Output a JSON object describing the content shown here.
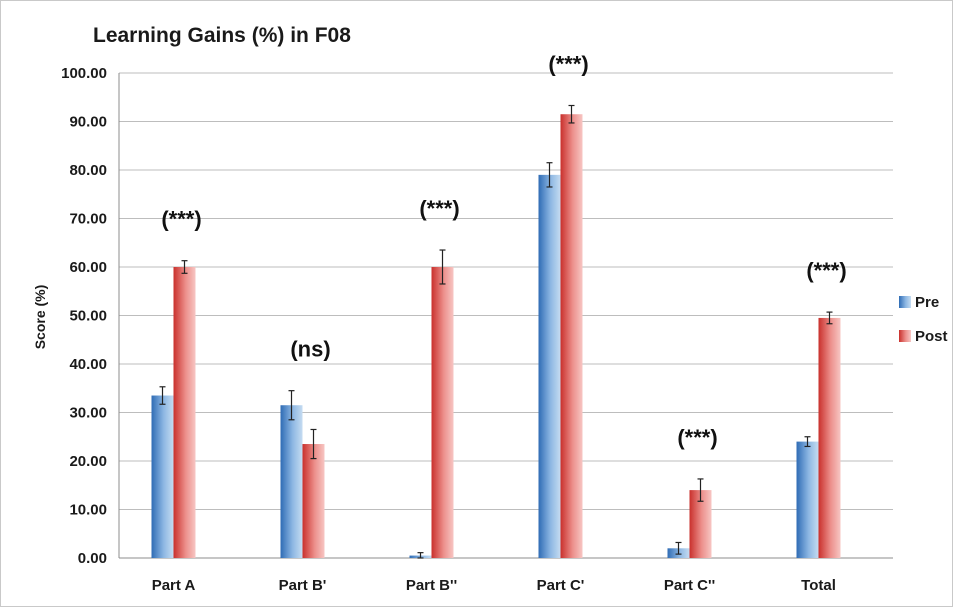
{
  "chart_data": {
    "type": "bar",
    "title": "Learning Gains (%) in F08",
    "ylabel": "Score (%)",
    "xlabel": "",
    "ylim": [
      0,
      100
    ],
    "yticks": [
      "0.00",
      "10.00",
      "20.00",
      "30.00",
      "40.00",
      "50.00",
      "60.00",
      "70.00",
      "80.00",
      "90.00",
      "100.00"
    ],
    "categories": [
      "Part A",
      "Part B'",
      "Part B''",
      "Part C'",
      "Part C''",
      "Total"
    ],
    "series": [
      {
        "name": "Pre",
        "values": [
          33.5,
          31.5,
          0.5,
          79.0,
          2.0,
          24.0
        ],
        "errors": [
          1.8,
          3.0,
          0.6,
          2.5,
          1.2,
          1.0
        ],
        "color": "#4f86c6"
      },
      {
        "name": "Post",
        "values": [
          60.0,
          23.5,
          60.0,
          91.5,
          14.0,
          49.5
        ],
        "errors": [
          1.3,
          3.0,
          3.5,
          1.8,
          2.3,
          1.2
        ],
        "color": "#d9534f"
      }
    ],
    "annotations": [
      "(***)",
      "(ns)",
      "(***)",
      "(***)",
      "(***)",
      "(***)"
    ],
    "grid": true,
    "legend_position": "right"
  }
}
